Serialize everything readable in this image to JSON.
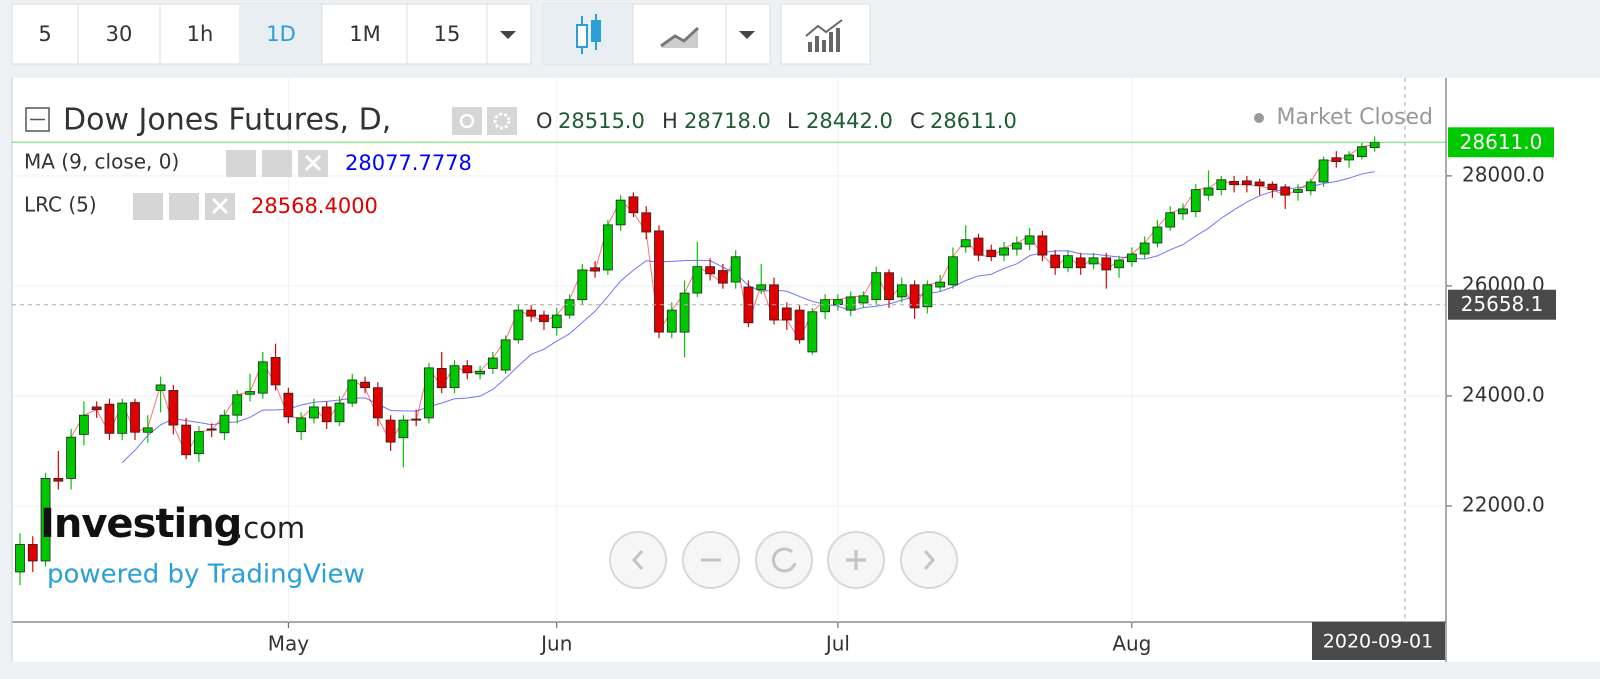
{
  "toolbar": {
    "intervals": [
      "5",
      "30",
      "1h",
      "1D",
      "1M",
      "15"
    ],
    "active": 3
  },
  "header": {
    "title": "Dow Jones Futures, D,",
    "status": "Market Closed",
    "ohlc": [
      {
        "key": "O",
        "value": "28515.0"
      },
      {
        "key": "H",
        "value": "28718.0"
      },
      {
        "key": "L",
        "value": "28442.0"
      },
      {
        "key": "C",
        "value": "28611.0"
      }
    ]
  },
  "watermark": {
    "brand": "Investing",
    "suffix": ".com",
    "powered": "powered by TradingView"
  },
  "chart_data": {
    "type": "candlestick",
    "categories": [
      null,
      null,
      null,
      null,
      null,
      null,
      null,
      null,
      null,
      null,
      null,
      null,
      null,
      null,
      null,
      null,
      null,
      null,
      null,
      null,
      null,
      "May",
      null,
      null,
      null,
      null,
      null,
      null,
      null,
      null,
      null,
      null,
      null,
      null,
      null,
      null,
      null,
      null,
      null,
      null,
      null,
      null,
      "Jun",
      null,
      null,
      null,
      null,
      null,
      null,
      null,
      null,
      null,
      null,
      null,
      null,
      null,
      null,
      null,
      null,
      null,
      null,
      null,
      null,
      null,
      "Jul",
      null,
      null,
      null,
      null,
      null,
      null,
      null,
      null,
      null,
      null,
      null,
      null,
      null,
      null,
      null,
      null,
      null,
      null,
      null,
      null,
      null,
      null,
      "Aug",
      null,
      null,
      null,
      null,
      null,
      null,
      null,
      null,
      null,
      null,
      null,
      null,
      null,
      null,
      null,
      null,
      null,
      null,
      null
    ],
    "open": [
      20800,
      21300,
      21000,
      22500,
      22500,
      23300,
      23800,
      23850,
      23320,
      23880,
      23340,
      24100,
      24100,
      23470,
      22950,
      23400,
      23330,
      23650,
      24030,
      24050,
      24700,
      24050,
      23350,
      23600,
      23800,
      23530,
      23870,
      24250,
      24150,
      23560,
      23240,
      23580,
      23600,
      24500,
      24150,
      24550,
      24400,
      24500,
      24470,
      25020,
      25560,
      25470,
      25240,
      25470,
      25750,
      26330,
      26290,
      27110,
      27620,
      27330,
      27000,
      25160,
      25160,
      25870,
      26350,
      26280,
      26070,
      25980,
      25930,
      26020,
      25600,
      25560,
      24800,
      25530,
      25660,
      25560,
      25690,
      25750,
      26240,
      25800,
      26020,
      25620,
      25980,
      26020,
      26710,
      26870,
      26650,
      26560,
      26670,
      26760,
      26910,
      26560,
      26330,
      26510,
      26400,
      26510,
      26330,
      26440,
      26580,
      26780,
      27070,
      27310,
      27350,
      27650,
      27750,
      27900,
      27910,
      27890,
      27850,
      27800,
      27700,
      27730,
      27890,
      28330,
      28290,
      28350,
      28515
    ],
    "high": [
      21500,
      21450,
      22600,
      23000,
      23400,
      23900,
      23900,
      23950,
      23950,
      23950,
      23650,
      24350,
      24200,
      23600,
      23450,
      23500,
      23750,
      24100,
      24400,
      24800,
      24950,
      24150,
      23700,
      23950,
      23900,
      24000,
      24400,
      24350,
      24250,
      23650,
      23650,
      23750,
      24600,
      24800,
      24650,
      24650,
      24550,
      24800,
      25100,
      25650,
      25650,
      25550,
      25600,
      25850,
      26400,
      26450,
      27200,
      27650,
      27700,
      27450,
      27100,
      25700,
      26100,
      26800,
      26500,
      26400,
      26650,
      26100,
      26400,
      26150,
      25700,
      25650,
      25600,
      25850,
      25850,
      25900,
      25900,
      26350,
      26300,
      26150,
      26100,
      26100,
      26200,
      26700,
      27100,
      26950,
      26750,
      26800,
      26900,
      27050,
      27000,
      26650,
      26650,
      26600,
      26600,
      26600,
      26550,
      26700,
      26900,
      27200,
      27450,
      27500,
      27850,
      28100,
      28000,
      28000,
      28000,
      27950,
      27900,
      27850,
      27850,
      27950,
      28350,
      28450,
      28450,
      28600,
      28718
    ],
    "low": [
      20560,
      20800,
      20900,
      22300,
      22300,
      23100,
      23600,
      23200,
      23200,
      23200,
      23150,
      23700,
      23300,
      22850,
      22800,
      23250,
      23200,
      23500,
      23900,
      23950,
      24100,
      23500,
      23200,
      23500,
      23400,
      23450,
      23800,
      24050,
      23450,
      23000,
      22700,
      23450,
      23500,
      24050,
      24050,
      24300,
      24300,
      24400,
      24400,
      24950,
      25350,
      25200,
      25100,
      25400,
      25650,
      26150,
      26200,
      27000,
      27250,
      26850,
      25050,
      25050,
      24700,
      25800,
      26100,
      25950,
      25950,
      25250,
      25850,
      25300,
      25200,
      24950,
      24750,
      25400,
      25550,
      25450,
      25600,
      25650,
      25600,
      25700,
      25400,
      25500,
      25900,
      25950,
      26600,
      26450,
      26450,
      26450,
      26550,
      26650,
      26450,
      26200,
      26250,
      26200,
      26300,
      25950,
      26150,
      26350,
      26500,
      26700,
      27000,
      27200,
      27250,
      27550,
      27650,
      27700,
      27700,
      27650,
      27600,
      27400,
      27550,
      27650,
      27800,
      28150,
      28150,
      28300,
      28442
    ],
    "close": [
      21300,
      21000,
      22500,
      22450,
      23250,
      23650,
      23750,
      23320,
      23870,
      23340,
      23420,
      24200,
      23470,
      22930,
      23350,
      23380,
      23650,
      24020,
      24080,
      24620,
      24200,
      23620,
      23600,
      23800,
      23530,
      23870,
      24290,
      24150,
      23600,
      23160,
      23560,
      23560,
      24510,
      24150,
      24550,
      24420,
      24450,
      24690,
      25020,
      25560,
      25450,
      25350,
      25470,
      25750,
      26290,
      26270,
      27110,
      27560,
      27330,
      26980,
      25160,
      25560,
      25870,
      26350,
      26220,
      26050,
      26530,
      25330,
      26020,
      25380,
      25380,
      25020,
      25530,
      25750,
      25750,
      25800,
      25820,
      26240,
      25750,
      26020,
      25600,
      26020,
      26070,
      26530,
      26840,
      26560,
      26530,
      26690,
      26780,
      26910,
      26560,
      26330,
      26550,
      26330,
      26510,
      26290,
      26470,
      26580,
      26780,
      27070,
      27330,
      27400,
      27750,
      27780,
      27930,
      27840,
      27840,
      27820,
      27750,
      27650,
      27750,
      27890,
      28290,
      28260,
      28380,
      28530,
      28611
    ],
    "up_color": "#00c800",
    "down_color": "#e00000",
    "overlays": [
      {
        "name": "MA (9, close, 0)",
        "last_label": "28077.7778",
        "color": "#0000ff",
        "values": [
          null,
          null,
          null,
          null,
          null,
          null,
          null,
          null,
          22788,
          23014,
          23283,
          23472,
          23586,
          23550,
          23517,
          23476,
          23512,
          23529,
          23611,
          23744,
          23744,
          23761,
          23836,
          23886,
          23902,
          23927,
          23957,
          23964,
          23851,
          23736,
          23729,
          23724,
          23803,
          23872,
          23948,
          23962,
          23996,
          24117,
          24323,
          24546,
          24756,
          24849,
          24996,
          25129,
          25337,
          25539,
          25808,
          26090,
          26287,
          26457,
          26436,
          26446,
          26459,
          26466,
          26460,
          26342,
          26228,
          26006,
          25899,
          25923,
          25903,
          25809,
          25718,
          25666,
          25632,
          25551,
          25606,
          25630,
          25671,
          25742,
          25807,
          25861,
          25897,
          25983,
          26099,
          26181,
          26213,
          26318,
          26402,
          26548,
          26608,
          26637,
          26639,
          26582,
          26577,
          26550,
          26526,
          26503,
          26489,
          26546,
          26657,
          26751,
          26909,
          27050,
          27232,
          27384,
          27524,
          27640,
          27716,
          27751,
          27790,
          27806,
          27862,
          27899,
          27959,
          28036,
          28078
        ]
      },
      {
        "name": "LRC (5)",
        "last_label": "28568.4000",
        "color": "#ff0000",
        "values": [
          null,
          null,
          null,
          null,
          23250,
          23650,
          23750,
          23320,
          23870,
          23340,
          23420,
          24200,
          23470,
          22930,
          23350,
          23380,
          23650,
          24020,
          24080,
          24620,
          24200,
          23620,
          23600,
          23800,
          23530,
          23870,
          24290,
          24150,
          23600,
          23160,
          23560,
          23560,
          24510,
          24150,
          24550,
          24420,
          24450,
          24690,
          25020,
          25560,
          25450,
          25350,
          25470,
          25750,
          26290,
          26270,
          27110,
          27560,
          27330,
          26980,
          25160,
          25560,
          25870,
          26350,
          26220,
          26050,
          26530,
          25330,
          26020,
          25380,
          25380,
          25020,
          25530,
          25750,
          25750,
          25800,
          25820,
          26240,
          25750,
          26020,
          25600,
          26020,
          26070,
          26530,
          26840,
          26560,
          26530,
          26690,
          26780,
          26910,
          26560,
          26330,
          26550,
          26330,
          26510,
          26290,
          26470,
          26580,
          26780,
          27070,
          27330,
          27400,
          27750,
          27780,
          27930,
          27840,
          27840,
          27820,
          27750,
          27650,
          27750,
          27890,
          28290,
          28260,
          28380,
          28530,
          28568
        ]
      }
    ],
    "ylim": [
      19890,
      29780
    ],
    "yticks": [
      {
        "value": 22000,
        "label": "22000.0"
      },
      {
        "value": 24000,
        "label": "24000.0"
      },
      {
        "value": 26000,
        "label": "26000.0"
      },
      {
        "value": 28000,
        "label": "28000.0"
      }
    ],
    "grid": true,
    "last_price": {
      "value": 28611,
      "label": "28611.0",
      "color": "#00c800"
    },
    "crosshair": {
      "price": 25658.1,
      "date": "2020-09-01"
    }
  }
}
